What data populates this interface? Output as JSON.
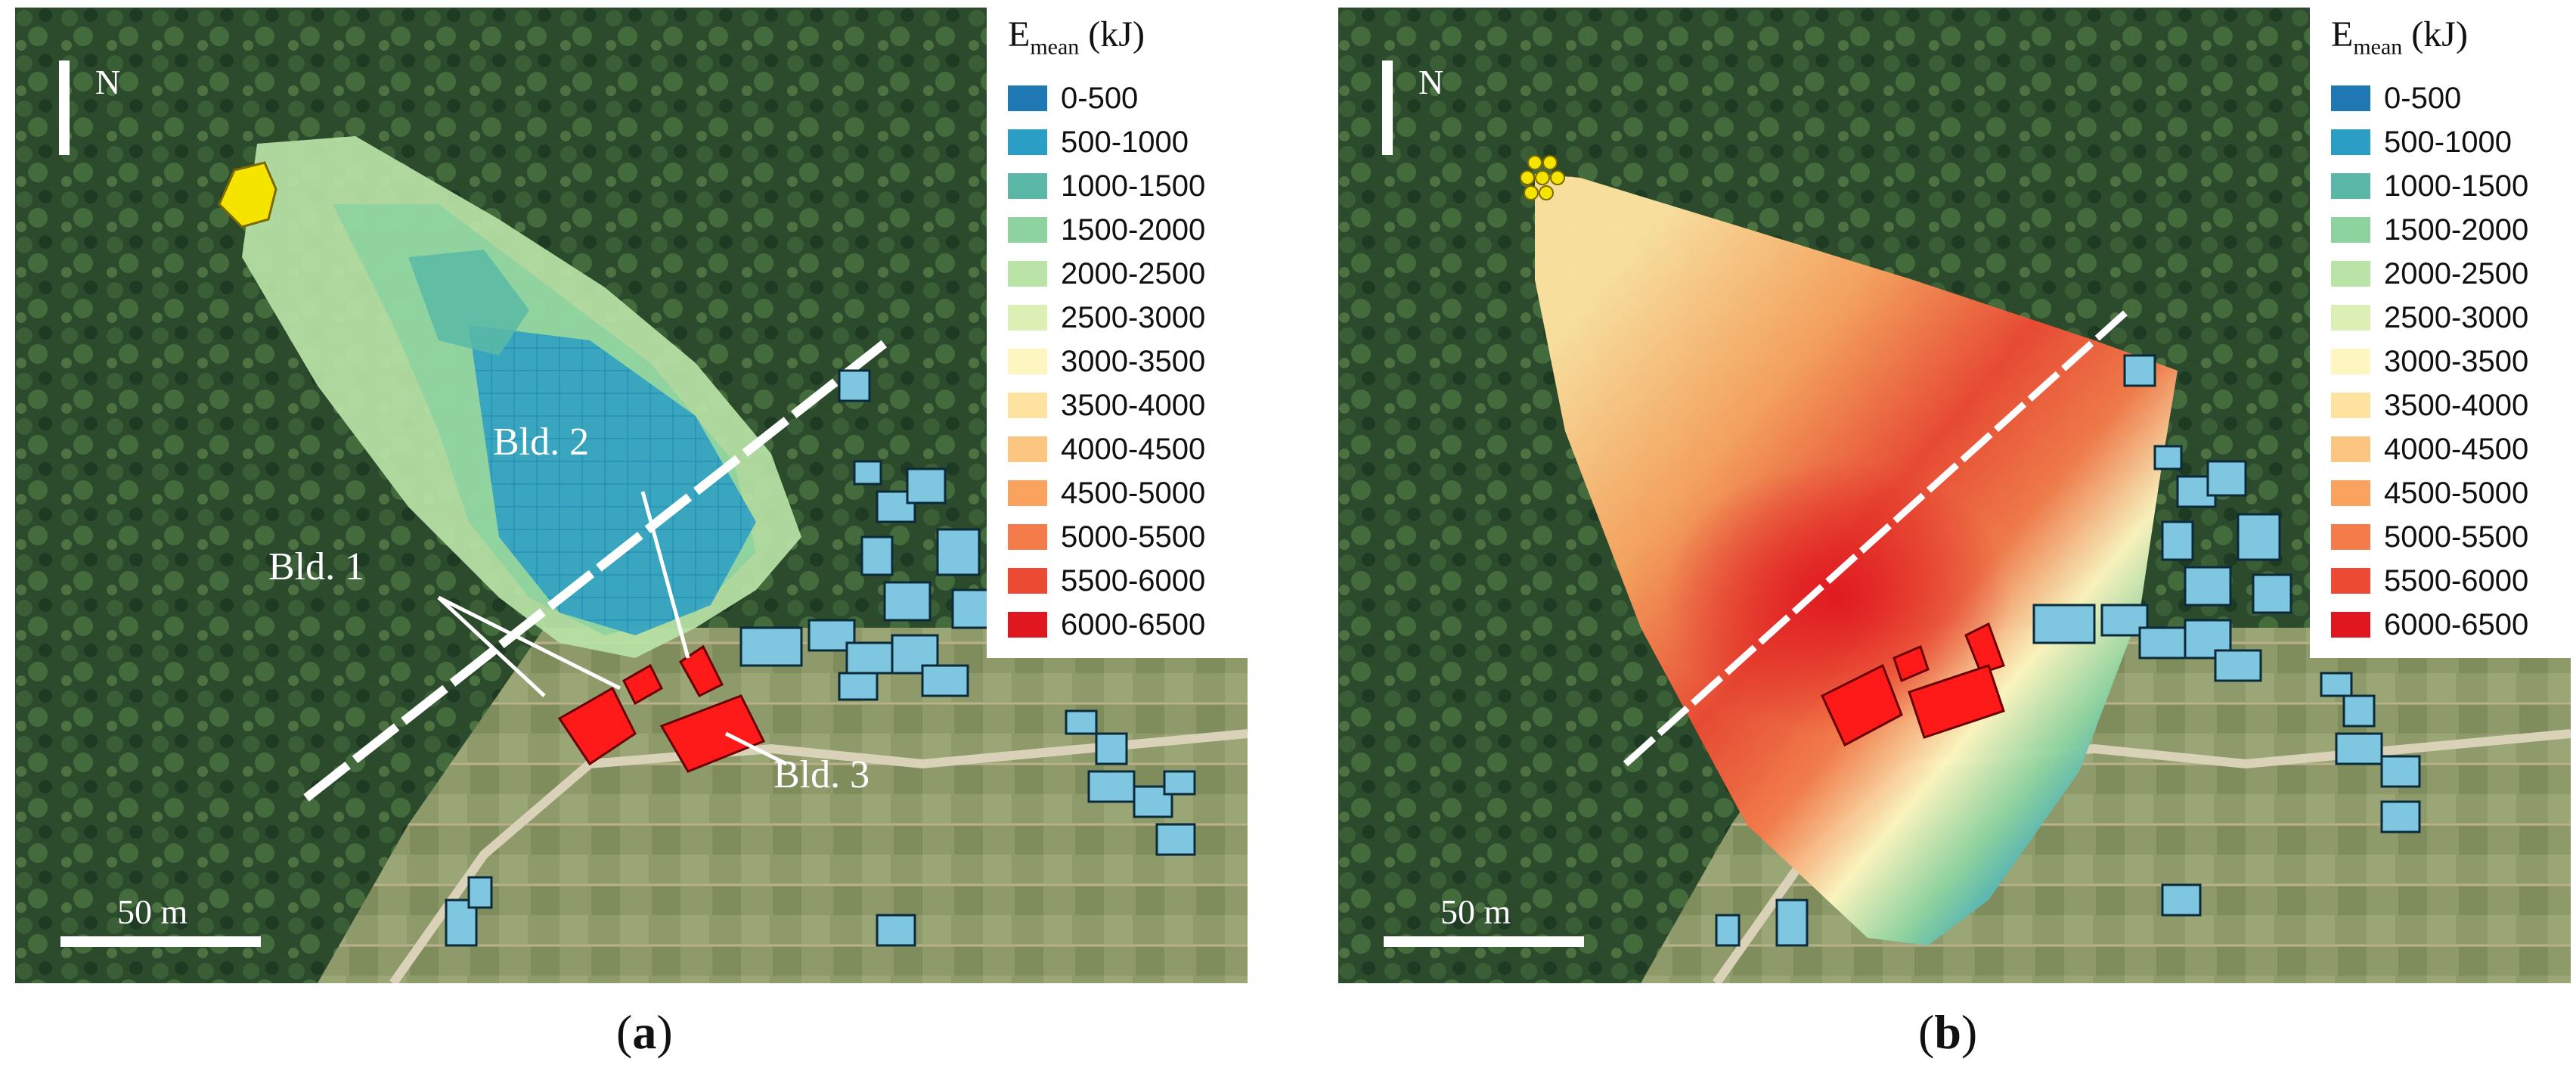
{
  "figure": {
    "panels": [
      {
        "id": "a",
        "caption_letter": "a",
        "north_label": "N",
        "scale_label": "50 m",
        "callouts": [
          "Bld. 1",
          "Bld. 2",
          "Bld. 3"
        ]
      },
      {
        "id": "b",
        "caption_letter": "b",
        "north_label": "N",
        "scale_label": "50 m",
        "callouts": []
      }
    ],
    "legend": {
      "title_main": "E",
      "title_sub": "mean",
      "title_unit": "(kJ)",
      "items": [
        {
          "label": "0-500",
          "color": "#1f78b4"
        },
        {
          "label": "500-1000",
          "color": "#2a9ec4"
        },
        {
          "label": "1000-1500",
          "color": "#5bb8a6"
        },
        {
          "label": "1500-2000",
          "color": "#8dd3a0"
        },
        {
          "label": "2000-2500",
          "color": "#b9e3a7"
        },
        {
          "label": "2500-3000",
          "color": "#dcefb4"
        },
        {
          "label": "3000-3500",
          "color": "#fdf6c0"
        },
        {
          "label": "3500-4000",
          "color": "#fde2a0"
        },
        {
          "label": "4000-4500",
          "color": "#fcc580"
        },
        {
          "label": "4500-5000",
          "color": "#f9a35f"
        },
        {
          "label": "5000-5500",
          "color": "#f47b4a"
        },
        {
          "label": "5500-6000",
          "color": "#ec4a33"
        },
        {
          "label": "6000-6500",
          "color": "#e0171f"
        }
      ]
    }
  }
}
